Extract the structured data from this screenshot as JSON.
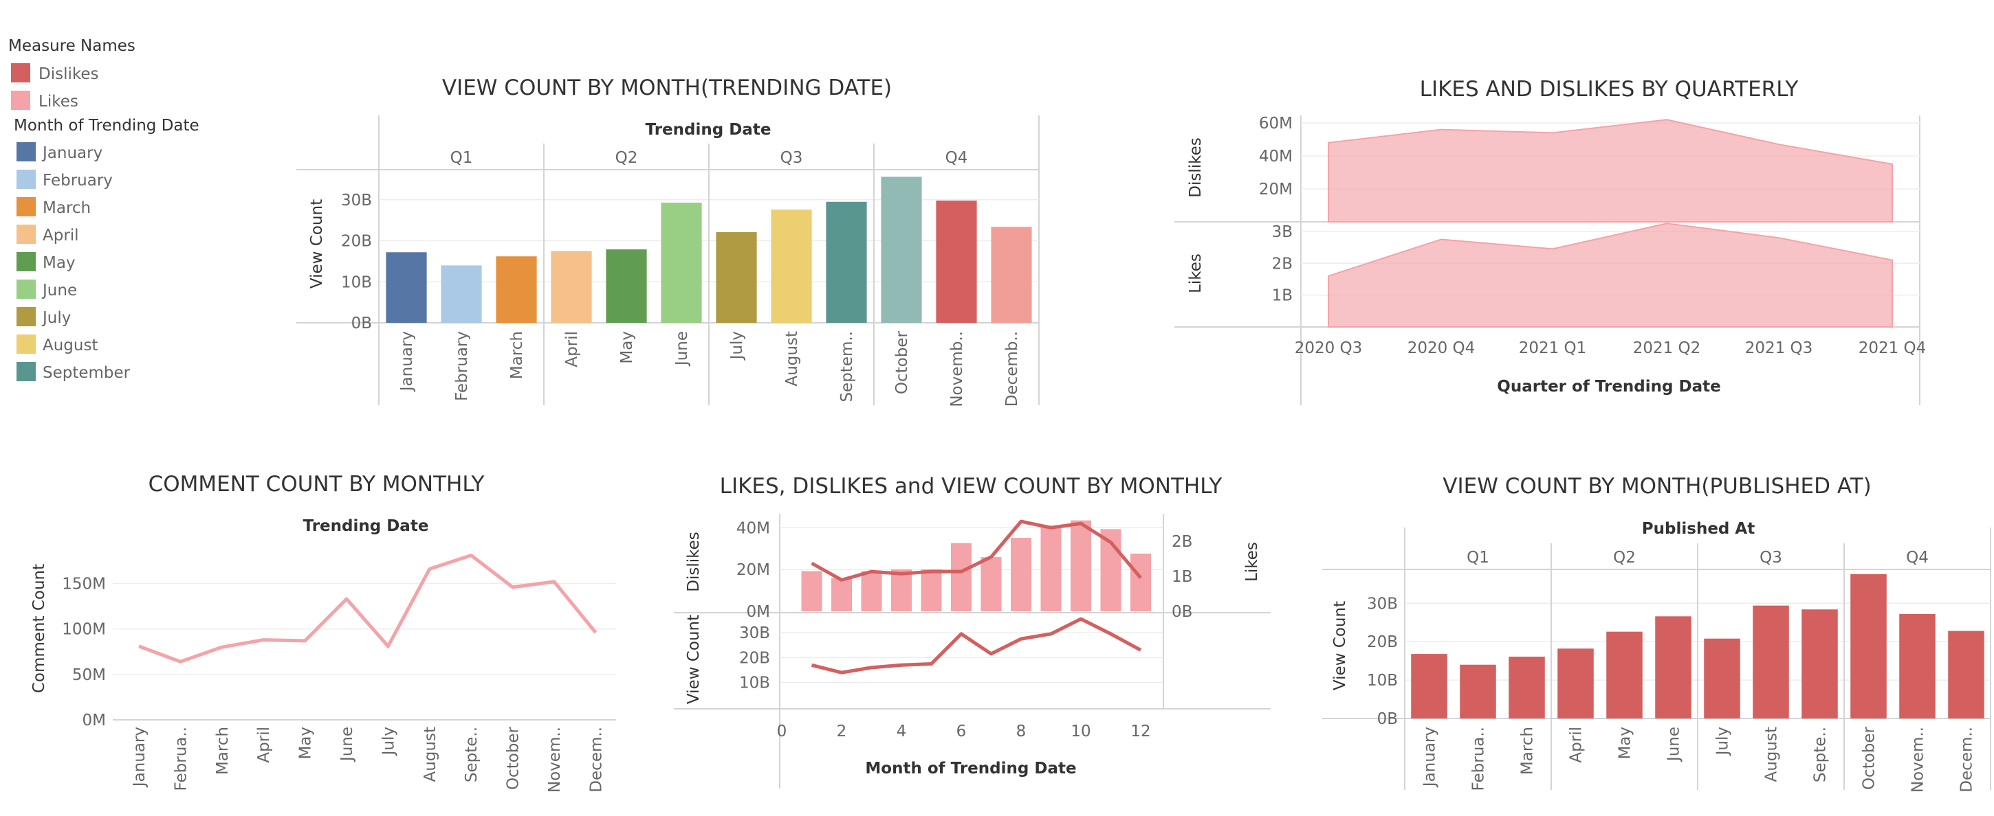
{
  "legend": {
    "measure_title": "Measure Names",
    "measure_items": [
      {
        "label": "Dislikes",
        "color": "#d45f5f"
      },
      {
        "label": "Likes",
        "color": "#f4a3a8"
      }
    ],
    "month_title": "Month of Trending Date",
    "month_items": [
      {
        "label": "January",
        "color": "#5676a5"
      },
      {
        "label": "February",
        "color": "#a9c9e7"
      },
      {
        "label": "March",
        "color": "#e6913c"
      },
      {
        "label": "April",
        "color": "#f5c08a"
      },
      {
        "label": "May",
        "color": "#619c53"
      },
      {
        "label": "June",
        "color": "#98cf84"
      },
      {
        "label": "July",
        "color": "#b09a42"
      },
      {
        "label": "August",
        "color": "#ebcf70"
      },
      {
        "label": "September",
        "color": "#5a9690"
      }
    ]
  },
  "chart_data": [
    {
      "id": "view-by-trending-month",
      "type": "bar",
      "title": "VIEW COUNT BY MONTH(TRENDING DATE)",
      "column_header": "Trending Date",
      "groups": [
        "Q1",
        "Q2",
        "Q3",
        "Q4"
      ],
      "categories": [
        "January",
        "February",
        "March",
        "April",
        "May",
        "June",
        "July",
        "August",
        "Septem..",
        "October",
        "Novemb..",
        "Decemb.."
      ],
      "values": [
        17.2,
        14.0,
        16.2,
        17.5,
        17.9,
        29.3,
        22.1,
        27.6,
        29.5,
        35.6,
        29.8,
        23.4
      ],
      "colors": [
        "#5676a5",
        "#a9c9e7",
        "#e6913c",
        "#f5c08a",
        "#619c53",
        "#98cf84",
        "#b09a42",
        "#ebcf70",
        "#5a9690",
        "#92bab5",
        "#d45f5f",
        "#f29e98"
      ],
      "ylabel": "View Count",
      "yticks": [
        "0B",
        "10B",
        "20B",
        "30B"
      ],
      "ylim": [
        0,
        37
      ]
    },
    {
      "id": "likes-dislikes-quarterly",
      "type": "area",
      "title": "LIKES AND DISLIKES BY QUARTERLY",
      "xlabel": "Quarter of Trending Date",
      "categories": [
        "2020 Q3",
        "2020 Q4",
        "2021 Q1",
        "2021 Q2",
        "2021 Q3",
        "2021 Q4"
      ],
      "series": [
        {
          "name": "Dislikes",
          "values": [
            48,
            56,
            54,
            62,
            47,
            35
          ],
          "yticks": [
            "20M",
            "40M",
            "60M"
          ],
          "ylim": [
            0,
            65
          ]
        },
        {
          "name": "Likes",
          "values": [
            1.6,
            2.75,
            2.45,
            3.25,
            2.8,
            2.1
          ],
          "yticks": [
            "1B",
            "2B",
            "3B"
          ],
          "ylim": [
            0,
            3.3
          ]
        }
      ],
      "color": "#f4a3a8"
    },
    {
      "id": "comment-count-monthly",
      "type": "line",
      "title": "COMMENT COUNT BY MONTHLY",
      "column_header": "Trending Date",
      "categories": [
        "January",
        "Februa..",
        "March",
        "April",
        "May",
        "June",
        "July",
        "August",
        "Septe..",
        "October",
        "Novem..",
        "Decem.."
      ],
      "values": [
        81,
        64,
        80,
        88,
        87,
        133,
        81,
        166,
        181,
        146,
        152,
        96
      ],
      "ylabel": "Comment Count",
      "yticks": [
        "0M",
        "50M",
        "100M",
        "150M"
      ],
      "ylim": [
        0,
        195
      ],
      "color": "#f4a3a8"
    },
    {
      "id": "likes-dislikes-views-monthly",
      "type": "bar",
      "title": "LIKES, DISLIKES and VIEW COUNT BY MONTHLY",
      "xlabel": "Month of Trending Date",
      "x": [
        1,
        2,
        3,
        4,
        5,
        6,
        7,
        8,
        9,
        10,
        11,
        12
      ],
      "xticks": [
        "0",
        "2",
        "4",
        "6",
        "8",
        "10",
        "12"
      ],
      "series": [
        {
          "name": "Likes",
          "kind": "bar",
          "values": [
            1.15,
            0.95,
            1.15,
            1.2,
            1.2,
            1.95,
            1.55,
            2.1,
            2.45,
            2.6,
            2.35,
            1.65
          ],
          "axis_label": "Likes",
          "yticks": [
            "0B",
            "1B",
            "2B"
          ],
          "ylim": [
            0,
            2.75
          ]
        },
        {
          "name": "Dislikes",
          "kind": "line",
          "values": [
            23,
            15,
            19,
            18,
            19,
            19,
            26,
            43,
            40,
            42,
            33,
            16
          ],
          "axis_label": "Dislikes",
          "yticks": [
            "0M",
            "20M",
            "40M"
          ],
          "ylim": [
            0,
            46
          ]
        },
        {
          "name": "View Count",
          "kind": "line",
          "values": [
            17,
            14,
            16,
            17,
            17.5,
            29.5,
            21.5,
            27.5,
            29.5,
            35.5,
            29.5,
            23
          ],
          "axis_label": "View Count",
          "yticks": [
            "10B",
            "20B",
            "30B"
          ],
          "ylim": [
            0,
            38
          ]
        }
      ],
      "colors": {
        "bar": "#f4a3a8",
        "line": "#d45f5f"
      }
    },
    {
      "id": "view-by-published-month",
      "type": "bar",
      "title": "VIEW COUNT BY MONTH(PUBLISHED AT)",
      "column_header": "Published At",
      "groups": [
        "Q1",
        "Q2",
        "Q3",
        "Q4"
      ],
      "categories": [
        "January",
        "Februa..",
        "March",
        "April",
        "May",
        "June",
        "July",
        "August",
        "Septe..",
        "October",
        "Novem..",
        "Decem.."
      ],
      "values": [
        16.8,
        14.0,
        16.1,
        18.2,
        22.6,
        26.6,
        20.8,
        29.4,
        28.4,
        37.6,
        27.2,
        22.8
      ],
      "color": "#d45f5f",
      "ylabel": "View Count",
      "yticks": [
        "0B",
        "10B",
        "20B",
        "30B"
      ],
      "ylim": [
        0,
        39
      ]
    }
  ]
}
